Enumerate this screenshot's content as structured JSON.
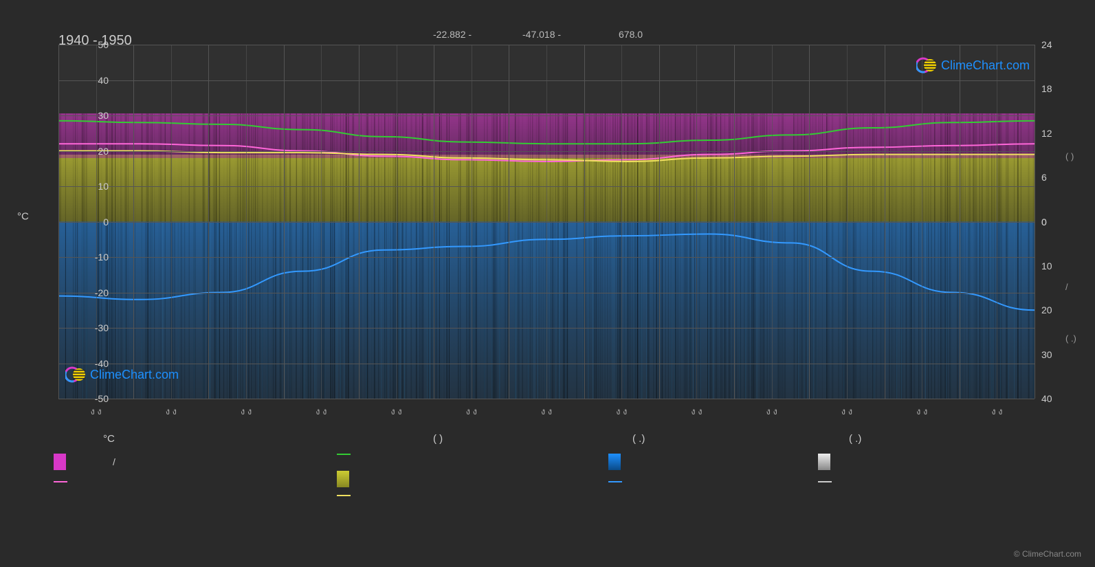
{
  "title": "1940 - 1950",
  "coords": {
    "lat": "-22.882 -",
    "lon": "-47.018 -",
    "elev": "678.0"
  },
  "logo_text": "ClimeChart.com",
  "footer": "© ClimeChart.com",
  "chart": {
    "type": "climate-chart",
    "background_color": "#303030",
    "grid_color": "#555555",
    "left_axis": {
      "title": "°C",
      "min": -50,
      "max": 50,
      "ticks": [
        50,
        40,
        30,
        20,
        10,
        0,
        -10,
        -20,
        -30,
        -40,
        -50
      ],
      "tick_labels": [
        "50",
        "40",
        "30",
        "20",
        "10",
        "0",
        "-10",
        "-20",
        "-30",
        "-40",
        "-50"
      ]
    },
    "right_axis": {
      "ticks_upper": [
        24,
        18,
        12,
        6,
        0
      ],
      "ticks_lower": [
        0,
        10,
        20,
        30,
        40
      ],
      "unit_markers": [
        "(   )",
        "/",
        "(  .)"
      ]
    },
    "x_ticks_count": 13,
    "x_tick_label": "ง ง",
    "fill_bands": {
      "pink_band": {
        "color": "#d838c8",
        "top_temp": 30,
        "bottom_temp": 18,
        "opacity": 0.55
      },
      "yellow_band": {
        "color": "#cccc33",
        "top_temp": 18,
        "bottom_temp": 0,
        "opacity": 0.65
      },
      "blue_band": {
        "color": "#1470b8",
        "top_temp": 0,
        "bottom_temp": -50,
        "opacity": 0.45
      }
    },
    "lines": {
      "green": {
        "color": "#33cc33",
        "width": 2,
        "values": [
          28.5,
          28,
          27.5,
          26,
          24,
          22.5,
          22,
          22,
          23,
          24.5,
          26.5,
          28,
          28.5
        ]
      },
      "pink": {
        "color": "#ff66d9",
        "width": 2,
        "values": [
          22,
          22,
          21.5,
          20,
          18.5,
          17.5,
          17,
          17.5,
          19,
          20,
          21,
          21.5,
          22
        ]
      },
      "yellow": {
        "color": "#f0e060",
        "width": 2,
        "values": [
          20,
          20,
          19.5,
          19.5,
          19,
          18,
          17.5,
          17,
          18,
          18.5,
          19,
          19,
          19
        ]
      },
      "blue": {
        "color": "#3399ff",
        "width": 2,
        "values": [
          -21,
          -22,
          -20,
          -14,
          -8,
          -7,
          -5,
          -4,
          -3.5,
          -6,
          -14,
          -20,
          -25
        ]
      }
    }
  },
  "legend": {
    "header1": "°C",
    "header2": "(         )",
    "header3": "(   .)",
    "header4": "(   .)",
    "items": [
      {
        "type": "swatch",
        "color": "#d838c8",
        "label": "/"
      },
      {
        "type": "line",
        "color": "#ff66d9",
        "label": ""
      },
      {
        "type": "line",
        "color": "#33cc33",
        "label": ""
      },
      {
        "type": "swatch-grad",
        "color1": "#cccc33",
        "color2": "#888822",
        "label": ""
      },
      {
        "type": "line",
        "color": "#f0e060",
        "label": ""
      },
      {
        "type": "swatch-grad",
        "color1": "#1e90ff",
        "color2": "#0a4a88",
        "label": ""
      },
      {
        "type": "line",
        "color": "#3399ff",
        "label": ""
      },
      {
        "type": "swatch-grad",
        "color1": "#eeeeee",
        "color2": "#888888",
        "label": ""
      },
      {
        "type": "line",
        "color": "#cccccc",
        "label": ""
      }
    ]
  }
}
